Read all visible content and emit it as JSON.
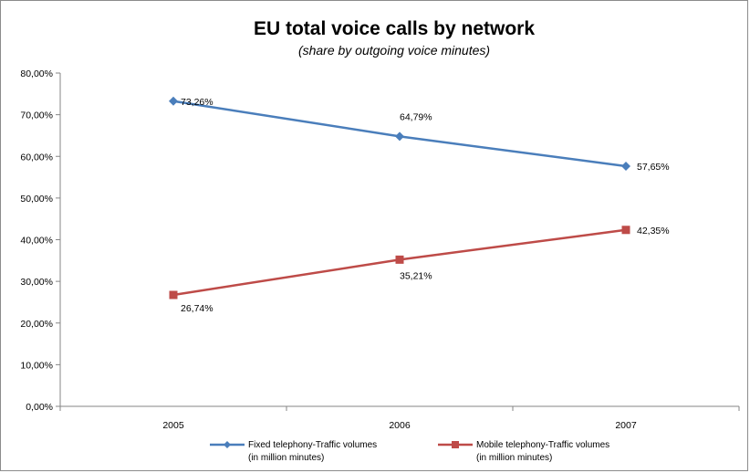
{
  "chart_data": {
    "type": "line",
    "title": "EU total voice calls by network",
    "subtitle": "(share by outgoing voice minutes)",
    "xlabel": "",
    "ylabel": "",
    "categories": [
      "2005",
      "2006",
      "2007"
    ],
    "ylim": [
      0,
      80
    ],
    "yticks": [
      "0,00%",
      "10,00%",
      "20,00%",
      "30,00%",
      "40,00%",
      "50,00%",
      "60,00%",
      "70,00%",
      "80,00%"
    ],
    "grid": false,
    "legend_position": "bottom",
    "series": [
      {
        "name": "Fixed telephony-Traffic volumes (in million minutes)",
        "legend_lines": [
          "Fixed telephony-Traffic volumes",
          "(in million minutes)"
        ],
        "values": [
          73.26,
          64.79,
          57.65
        ],
        "labels": [
          "73,26%",
          "64,79%",
          "57,65%"
        ],
        "color": "#4a7ebb",
        "marker": "diamond"
      },
      {
        "name": "Mobile telephony-Traffic volumes (in million minutes)",
        "legend_lines": [
          "Mobile telephony-Traffic volumes",
          "(in million minutes)"
        ],
        "values": [
          26.74,
          35.21,
          42.35
        ],
        "labels": [
          "26,74%",
          "35,21%",
          "42,35%"
        ],
        "color": "#be4b48",
        "marker": "square"
      }
    ]
  }
}
